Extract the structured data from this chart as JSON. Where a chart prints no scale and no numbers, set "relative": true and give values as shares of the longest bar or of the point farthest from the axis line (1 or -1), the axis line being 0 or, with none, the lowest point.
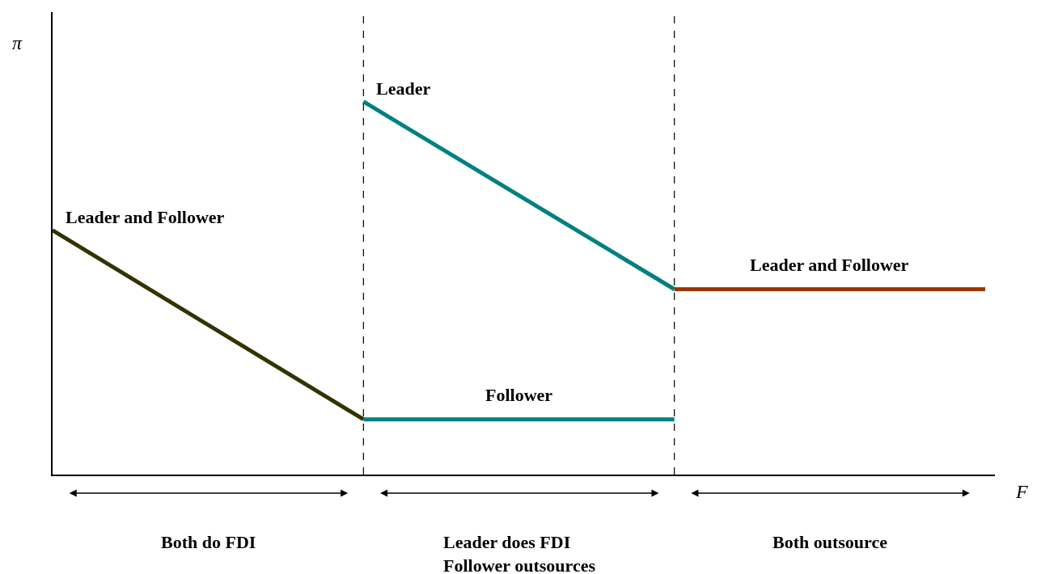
{
  "chart_data": {
    "type": "line",
    "relative": true,
    "categories": [
      null,
      null,
      null,
      null
    ],
    "xlabel": "F",
    "ylabel": "π",
    "series": [
      {
        "name": "Leader and Follower",
        "color": "#333300",
        "values": [
          0.655,
          0.148,
          null,
          null
        ]
      },
      {
        "name": "Leader",
        "color": "#008080",
        "values": [
          null,
          1.0,
          0.497,
          null
        ]
      },
      {
        "name": "Follower",
        "color": "#008080",
        "values": [
          null,
          0.148,
          0.148,
          null
        ]
      },
      {
        "name": "Leader and Follower",
        "color": "#993300",
        "values": [
          null,
          null,
          0.497,
          0.497
        ]
      }
    ],
    "annotations": [
      "Both do FDI",
      "Leader does FDI\nFollower outsources",
      "Both outsource"
    ],
    "legend": false,
    "marker": "none",
    "line_style": "solid"
  }
}
